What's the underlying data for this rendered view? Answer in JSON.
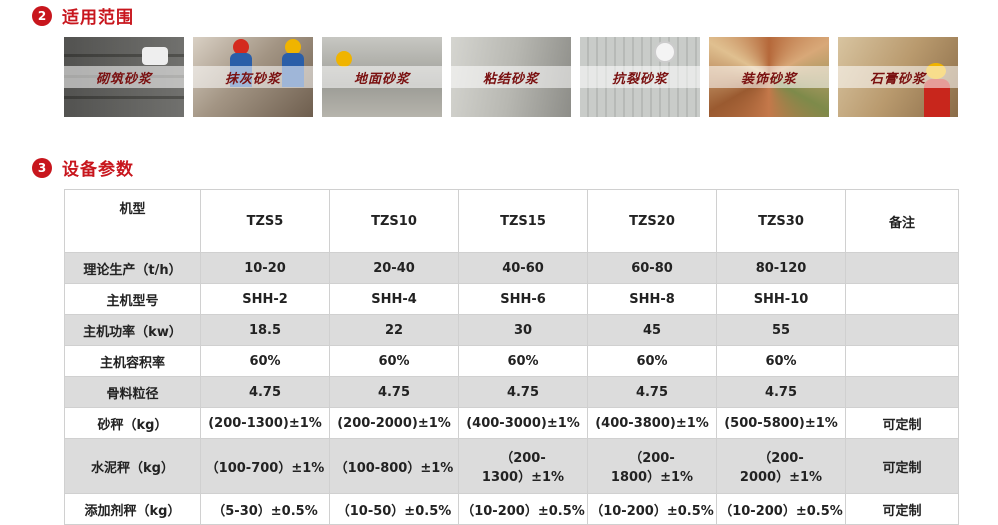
{
  "sections": {
    "scope": {
      "number": "2",
      "title": "适用范围"
    },
    "params": {
      "number": "3",
      "title": "设备参数"
    }
  },
  "applications": [
    {
      "label": "砌筑砂浆",
      "image": "bricklaying-photo"
    },
    {
      "label": "抹灰砂浆",
      "image": "plastering-workers-photo"
    },
    {
      "label": "地面砂浆",
      "image": "floor-screed-photo"
    },
    {
      "label": "粘结砂浆",
      "image": "tile-adhesive-photo"
    },
    {
      "label": "抗裂砂浆",
      "image": "crack-resistant-mesh-photo"
    },
    {
      "label": "装饰砂浆",
      "image": "decorative-color-samples-photo"
    },
    {
      "label": "石膏砂浆",
      "image": "gypsum-plaster-worker-photo"
    }
  ],
  "table": {
    "header": [
      "机型",
      "TZS5",
      "TZS10",
      "TZS15",
      "TZS20",
      "TZS30",
      "备注"
    ],
    "rows": [
      [
        "理论生产（t/h）",
        "10-20",
        "20-40",
        "40-60",
        "60-80",
        "80-120",
        ""
      ],
      [
        "主机型号",
        "SHH-2",
        "SHH-4",
        "SHH-6",
        "SHH-8",
        "SHH-10",
        ""
      ],
      [
        "主机功率（kw）",
        "18.5",
        "22",
        "30",
        "45",
        "55",
        ""
      ],
      [
        "主机容积率",
        "60%",
        "60%",
        "60%",
        "60%",
        "60%",
        ""
      ],
      [
        "骨料粒径",
        "4.75",
        "4.75",
        "4.75",
        "4.75",
        "4.75",
        ""
      ],
      [
        "砂秤（kg）",
        "(200-1300)±1%",
        "(200-2000)±1%",
        "(400-3000)±1%",
        "(400-3800)±1%",
        "(500-5800)±1%",
        "可定制"
      ],
      [
        "水泥秤（kg）",
        "（100-700）±1%",
        "（100-800）±1%",
        "（200-1300）±1%",
        "（200-1800）±1%",
        "（200-2000）±1%",
        "可定制"
      ],
      [
        "添加剂秤（kg）",
        "（5-30）±0.5%",
        "（10-50）±0.5%",
        "（10-200）±0.5%",
        "（10-200）±0.5%",
        "（10-200）±0.5%",
        "可定制"
      ]
    ]
  }
}
